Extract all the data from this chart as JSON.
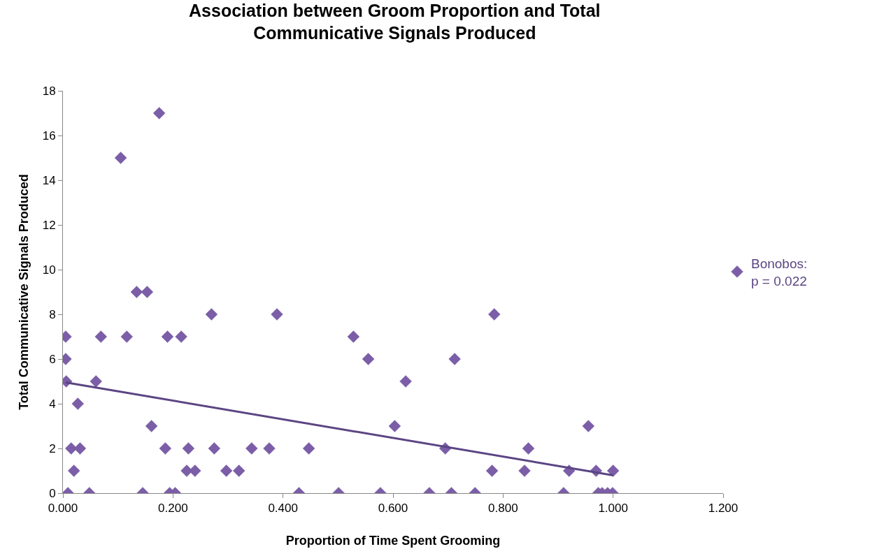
{
  "chart_data": {
    "type": "scatter",
    "title": "Association between Groom Proportion and Total\nCommunicative Signals Produced",
    "xlabel": "Proportion of Time Spent Grooming",
    "ylabel": "Total Communicative Signals Produced",
    "xlim": [
      0,
      1.2
    ],
    "xticks": [
      {
        "value": 0,
        "label": "0.000"
      },
      {
        "value": 0.2,
        "label": "0.200"
      },
      {
        "value": 0.4,
        "label": "0.400"
      },
      {
        "value": 0.6,
        "label": "0.600"
      },
      {
        "value": 0.8,
        "label": "0.800"
      },
      {
        "value": 1.0,
        "label": "1.000"
      },
      {
        "value": 1.2,
        "label": "1.200"
      }
    ],
    "ylim": [
      0,
      18
    ],
    "yticks": [
      0,
      2,
      4,
      6,
      8,
      10,
      12,
      14,
      16,
      18
    ],
    "legend": "right",
    "series": [
      {
        "name": "Bonobos:\np = 0.022",
        "marker": "diamond",
        "color": "#7b5ea7",
        "x": [
          0.005,
          0.005,
          0.006,
          0.027,
          0.009,
          0.015,
          0.02,
          0.031,
          0.048,
          0.06,
          0.069,
          0.105,
          0.116,
          0.134,
          0.153,
          0.145,
          0.161,
          0.175,
          0.186,
          0.19,
          0.194,
          0.204,
          0.215,
          0.225,
          0.228,
          0.24,
          0.27,
          0.275,
          0.297,
          0.32,
          0.343,
          0.375,
          0.389,
          0.429,
          0.447,
          0.501,
          0.528,
          0.555,
          0.577,
          0.603,
          0.623,
          0.666,
          0.695,
          0.706,
          0.712,
          0.749,
          0.78,
          0.784,
          0.839,
          0.846,
          0.91,
          0.92,
          0.955,
          0.969,
          0.973,
          0.98,
          0.99,
          0.999,
          1.0
        ],
        "values": [
          7,
          6,
          5,
          4,
          0,
          2,
          1,
          2,
          0,
          5,
          7,
          15,
          7,
          9,
          9,
          0,
          3,
          17,
          2,
          7,
          0,
          0,
          7,
          1,
          2,
          1,
          8,
          2,
          1,
          1,
          2,
          2,
          8,
          0,
          2,
          0,
          7,
          6,
          0,
          3,
          5,
          0,
          2,
          0,
          6,
          0,
          1,
          8,
          1,
          2,
          0,
          1,
          3,
          1,
          0,
          0,
          0,
          0,
          1
        ]
      },
      {
        "type": "line",
        "marker": "none",
        "color": "#5b4583",
        "line_style": "solid",
        "x": [
          0.005,
          1.0
        ],
        "values": [
          4.95,
          0.8
        ]
      }
    ]
  }
}
